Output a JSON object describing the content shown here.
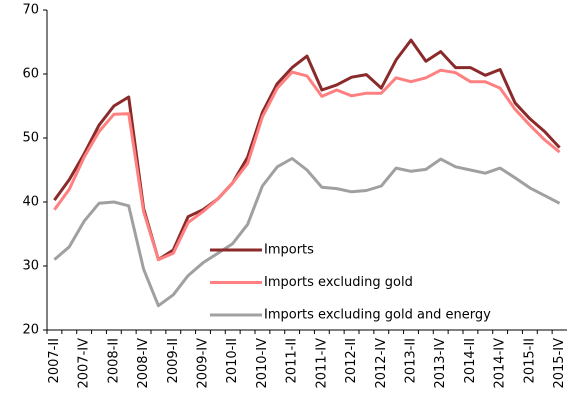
{
  "chart_data": {
    "type": "line",
    "categories": [
      "2007-II",
      null,
      "2007-IV",
      null,
      "2008-II",
      null,
      "2008-IV",
      null,
      "2009-II",
      null,
      "2009-IV",
      null,
      "2010-II",
      null,
      "2010-IV",
      null,
      "2011-II",
      null,
      "2011-IV",
      null,
      "2012-II",
      null,
      "2012-IV",
      null,
      "2013-II",
      null,
      "2013-IV",
      null,
      "2014-II",
      null,
      "2014-IV",
      null,
      "2015-II",
      null,
      "2015-IV"
    ],
    "series": [
      {
        "name": "Imports",
        "color": "#8b2a2a",
        "values": [
          40.3,
          43.5,
          47.5,
          52,
          55,
          56.4,
          39,
          31,
          32.5,
          37.7,
          38.8,
          40.5,
          43,
          47,
          54,
          58.5,
          61,
          62.8,
          57.5,
          58.3,
          59.5,
          59.9,
          57.8,
          62.2,
          65.3,
          62,
          63.5,
          61,
          61,
          59.8,
          60.7,
          55.5,
          53,
          51,
          48.5
        ]
      },
      {
        "name": "Imports excluding gold",
        "color": "#ff8080",
        "values": [
          38.8,
          42,
          47,
          51,
          53.7,
          53.8,
          38.5,
          31,
          32,
          36.8,
          38.5,
          40.5,
          43,
          46,
          53.3,
          57.8,
          60.3,
          59.7,
          56.5,
          57.5,
          56.6,
          57,
          57,
          59.4,
          58.8,
          59.4,
          60.6,
          60.2,
          58.8,
          58.8,
          57.8,
          54.5,
          52,
          49.7,
          47.8
        ]
      },
      {
        "name": "Imports excluding gold and energy",
        "color": "#a0a0a0",
        "values": [
          31,
          33,
          37,
          39.8,
          40,
          39.4,
          29.5,
          23.8,
          25.5,
          28.5,
          30.5,
          32,
          33.5,
          36.5,
          42.5,
          45.5,
          46.8,
          45,
          42.3,
          42.1,
          41.6,
          41.8,
          42.5,
          45.3,
          44.8,
          45.1,
          46.7,
          45.5,
          45,
          44.5,
          45.3,
          43.8,
          42.2,
          41,
          39.8
        ]
      }
    ],
    "ylim": [
      20,
      70
    ],
    "yticks": [
      20,
      30,
      40,
      50,
      60,
      70
    ],
    "grid": false
  }
}
